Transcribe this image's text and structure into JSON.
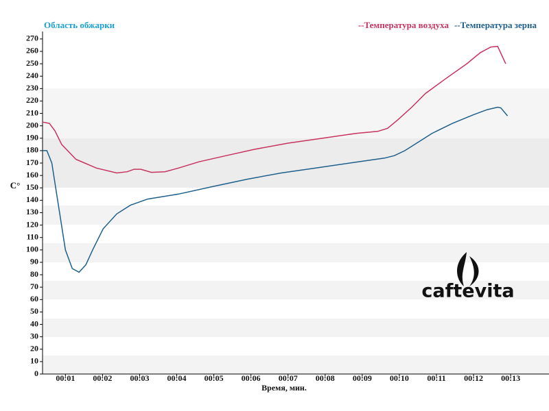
{
  "chart_data": {
    "type": "line",
    "title": "Область обжарки",
    "xlabel": "Время, мин.",
    "ylabel": "C°",
    "logo": "caftevita",
    "xlim": [
      23,
      842
    ],
    "ylim": [
      0,
      276
    ],
    "xticks": [
      {
        "value": 60,
        "label": "00:01"
      },
      {
        "value": 120,
        "label": "00:02"
      },
      {
        "value": 180,
        "label": "00:03"
      },
      {
        "value": 240,
        "label": "00:04"
      },
      {
        "value": 300,
        "label": "00:05"
      },
      {
        "value": 360,
        "label": "00:06"
      },
      {
        "value": 420,
        "label": "00:07"
      },
      {
        "value": 480,
        "label": "00:08"
      },
      {
        "value": 540,
        "label": "00:09"
      },
      {
        "value": 600,
        "label": "00:10"
      },
      {
        "value": 660,
        "label": "00:11"
      },
      {
        "value": 720,
        "label": "00:12"
      },
      {
        "value": 780,
        "label": "00:13"
      }
    ],
    "yticks": [
      0,
      10,
      20,
      30,
      40,
      50,
      60,
      70,
      80,
      90,
      100,
      110,
      120,
      130,
      140,
      150,
      160,
      170,
      180,
      190,
      200,
      210,
      220,
      230,
      240,
      250,
      260,
      270
    ],
    "legend": "top-right",
    "series": [
      {
        "name": "--Температура воздуха",
        "color": "#c8325e",
        "x": [
          23,
          34,
          43,
          54,
          77,
          110,
          143,
          160,
          171,
          182,
          199,
          221,
          243,
          276,
          320,
          365,
          420,
          476,
          531,
          565,
          581,
          598,
          620,
          642,
          675,
          709,
          731,
          748,
          759,
          772
        ],
        "values": [
          203,
          202,
          196,
          185,
          173,
          166,
          162,
          163,
          165,
          165,
          162.5,
          163,
          166,
          171,
          176,
          181,
          186,
          190,
          194,
          195.5,
          198,
          205,
          215,
          226,
          238,
          250,
          259,
          263.5,
          264,
          250
        ]
      },
      {
        "name": "--Температура зерна",
        "color": "#1d5f8c",
        "x": [
          23,
          30,
          38,
          49,
          60,
          71,
          82,
          93,
          104,
          121,
          143,
          165,
          193,
          243,
          298,
          354,
          409,
          465,
          520,
          576,
          592,
          609,
          631,
          653,
          686,
          720,
          742,
          759,
          764,
          775
        ],
        "values": [
          180,
          180,
          170,
          135,
          100,
          85,
          82,
          88,
          100,
          117,
          129,
          136,
          141,
          145,
          151,
          157,
          162,
          166,
          170,
          174,
          176,
          180,
          187,
          194,
          202,
          209,
          213,
          215,
          214.5,
          208
        ]
      }
    ]
  }
}
